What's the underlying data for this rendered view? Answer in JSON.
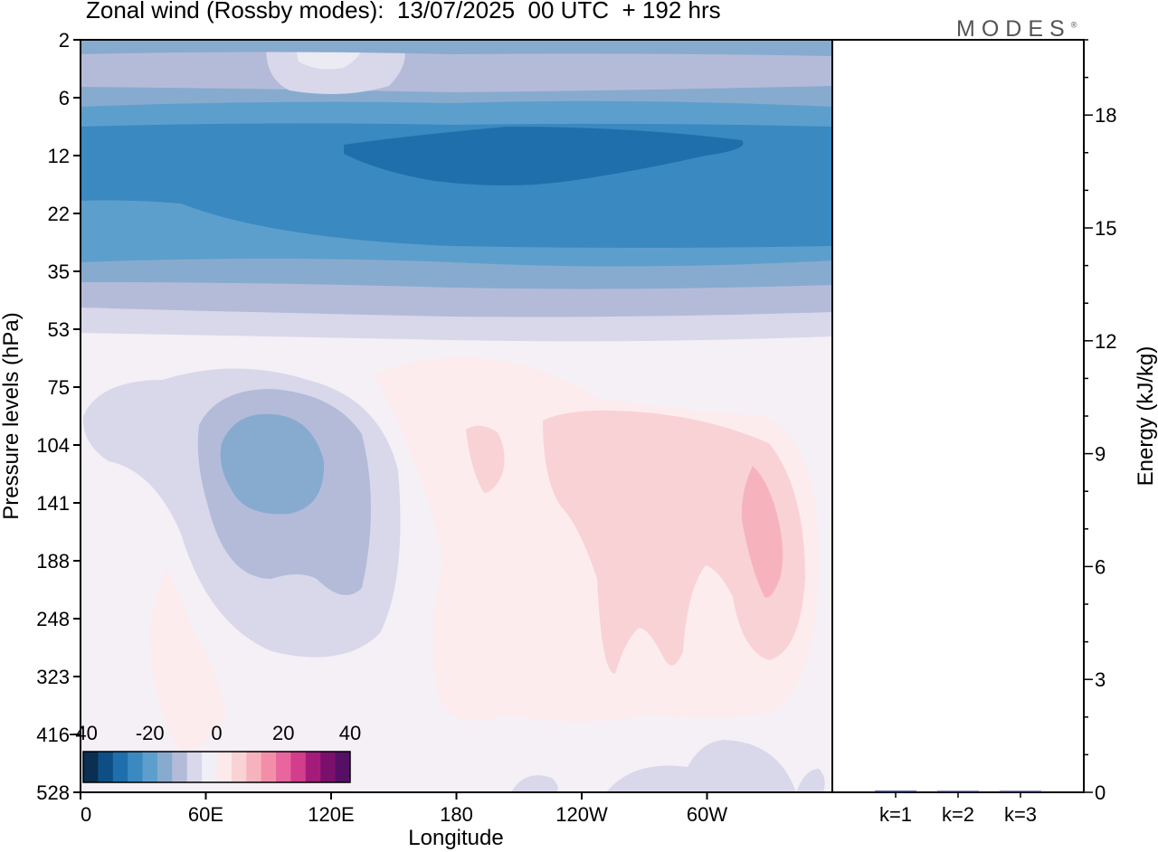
{
  "title": "Zonal wind (Rossby modes):  13/07/2025  00 UTC  + 192 hrs",
  "brand": "MODES",
  "brand_mark": "®",
  "chart_data": [
    {
      "type": "heatmap",
      "title": "Zonal wind (Rossby modes):  13/07/2025  00 UTC  + 192 hrs",
      "xlabel": "Longitude",
      "ylabel": "Pressure levels (hPa)",
      "x_tick_labels": [
        "0",
        "60E",
        "120E",
        "180",
        "120W",
        "60W"
      ],
      "y_tick_labels": [
        "2",
        "6",
        "12",
        "22",
        "35",
        "53",
        "75",
        "104",
        "141",
        "188",
        "248",
        "323",
        "416",
        "528"
      ],
      "colorbar": {
        "tick_labels": [
          "-40",
          "-20",
          "0",
          "20",
          "40"
        ],
        "range": [
          -40,
          40
        ],
        "colors": [
          "#0a2f52",
          "#0d4f85",
          "#1f6fac",
          "#3a89c1",
          "#5d9fcc",
          "#87abcf",
          "#b4bbd9",
          "#d8d8ea",
          "#f0eef6",
          "#fce9ea",
          "#f9d2d6",
          "#f6b3be",
          "#f38ea8",
          "#e8659d",
          "#d23d8c",
          "#a41c7a",
          "#7b0f6c",
          "#551066"
        ]
      },
      "zonal_wind_field": [
        {
          "levels": "2-6 hPa",
          "longitudes": "0-360",
          "value": -8
        },
        {
          "levels": "6-12 hPa",
          "longitudes": "0-360",
          "value": -18
        },
        {
          "levels": "12-22 hPa",
          "longitudes": "0-360",
          "value": -25
        },
        {
          "levels": "12 hPa",
          "longitudes": "130E-70W",
          "value": -32
        },
        {
          "levels": "22-35 hPa",
          "longitudes": "0-360",
          "value": -18
        },
        {
          "levels": "35-53 hPa",
          "longitudes": "0-360",
          "value": -8
        },
        {
          "levels": "75-250 hPa",
          "longitudes": "0-150E",
          "value": -5
        },
        {
          "levels": "104-150 hPa",
          "longitudes": "40E-110E",
          "value": -15
        },
        {
          "levels": "75-300 hPa",
          "longitudes": "150E-20W",
          "value": 4
        },
        {
          "levels": "100-300 hPa",
          "longitudes": "160W-20W",
          "value": 8
        },
        {
          "levels": "141-220 hPa",
          "longitudes": "45W-20W",
          "value": 15
        }
      ]
    },
    {
      "type": "bar",
      "categories": [
        "k=1",
        "k=2",
        "k=3"
      ],
      "values": [
        0.04,
        0.01,
        0.005
      ],
      "ylabel": "Energy (kJ/kg)",
      "ylim": [
        0,
        20
      ],
      "y_tick_labels": [
        "0",
        "3",
        "6",
        "9",
        "12",
        "15",
        "18"
      ],
      "colors": [
        "#1a1a8c",
        "#1a1a8c",
        "#1a1a8c"
      ]
    }
  ]
}
